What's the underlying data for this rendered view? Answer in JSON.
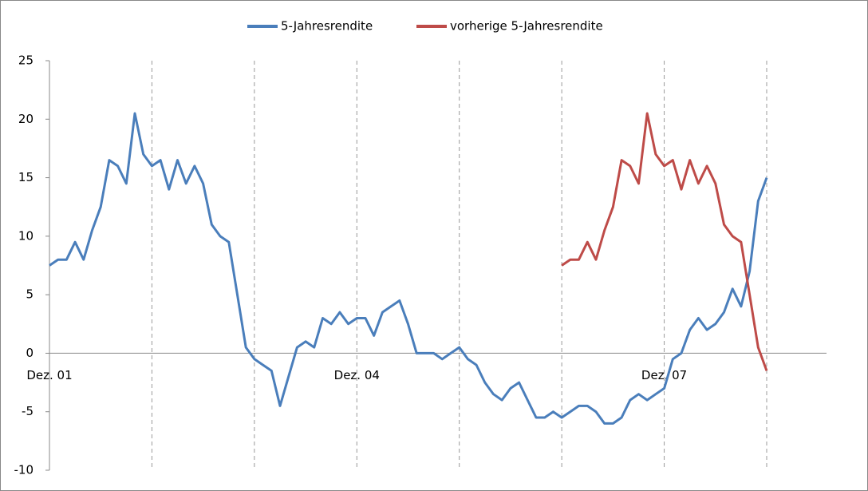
{
  "chart_data": {
    "type": "line",
    "categories": [
      "Dez. 01",
      null,
      null,
      null,
      null,
      null,
      null,
      null,
      null,
      null,
      null,
      null,
      null,
      null,
      null,
      null,
      null,
      null,
      null,
      null,
      null,
      null,
      null,
      null,
      null,
      null,
      null,
      null,
      null,
      null,
      null,
      null,
      null,
      null,
      null,
      null,
      "Dez. 04",
      null,
      null,
      null,
      null,
      null,
      null,
      null,
      null,
      null,
      null,
      null,
      null,
      null,
      null,
      null,
      null,
      null,
      null,
      null,
      null,
      null,
      null,
      null,
      null,
      null,
      null,
      null,
      null,
      null,
      null,
      null,
      null,
      null,
      null,
      null,
      "Dez. 07",
      null,
      null,
      null,
      null,
      null,
      null,
      null,
      null,
      null,
      null,
      null,
      null
    ],
    "series": [
      {
        "name": "5-Jahresrendite",
        "color": "#4a7ebb",
        "values": [
          7.5,
          8,
          8,
          9.5,
          8,
          10.5,
          12.5,
          16.5,
          16,
          14.5,
          20.5,
          17,
          16,
          16.5,
          14,
          16.5,
          14.5,
          16,
          14.5,
          11,
          10,
          9.5,
          5,
          0.5,
          -0.5,
          -1,
          -1.5,
          -4.5,
          -2,
          0.5,
          1,
          0.5,
          3,
          2.5,
          3.5,
          2.5,
          3,
          3,
          1.5,
          3.5,
          4,
          4.5,
          2.5,
          0,
          0,
          0,
          -0.5,
          0,
          0.5,
          -0.5,
          -1,
          -2.5,
          -3.5,
          -4,
          -3,
          -2.5,
          -4,
          -5.5,
          -5.5,
          -5,
          -5.5,
          -5,
          -4.5,
          -4.5,
          -5,
          -6,
          -6,
          -5.5,
          -4,
          -3.5,
          -4,
          -3.5,
          -3,
          -0.5,
          0,
          2,
          3,
          2,
          2.5,
          3.5,
          5.5,
          4,
          7,
          13,
          15
        ]
      },
      {
        "name": "vorherige 5-Jahresrendite",
        "color": "#be4b48",
        "values": [
          null,
          null,
          null,
          null,
          null,
          null,
          null,
          null,
          null,
          null,
          null,
          null,
          null,
          null,
          null,
          null,
          null,
          null,
          null,
          null,
          null,
          null,
          null,
          null,
          null,
          null,
          null,
          null,
          null,
          null,
          null,
          null,
          null,
          null,
          null,
          null,
          null,
          null,
          null,
          null,
          null,
          null,
          null,
          null,
          null,
          null,
          null,
          null,
          null,
          null,
          null,
          null,
          null,
          null,
          null,
          null,
          null,
          null,
          null,
          null,
          7.5,
          8,
          8,
          9.5,
          8,
          10.5,
          12.5,
          16.5,
          16,
          14.5,
          20.5,
          17,
          16,
          16.5,
          14,
          16.5,
          14.5,
          16,
          14.5,
          11,
          10,
          9.5,
          5,
          0.5,
          -1.5
        ]
      }
    ],
    "ylim": [
      -10,
      25
    ],
    "yticks": [
      -10,
      -5,
      0,
      5,
      10,
      15,
      20,
      25
    ],
    "legend": "top"
  }
}
